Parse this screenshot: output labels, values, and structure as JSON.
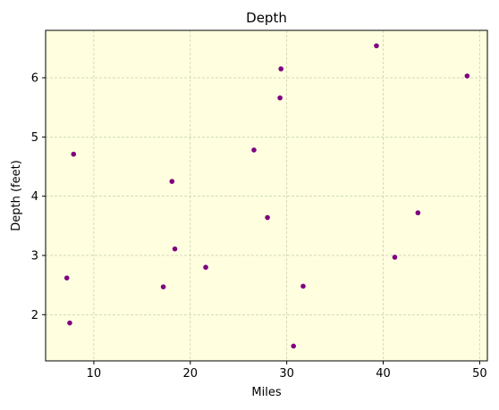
{
  "chart_data": {
    "type": "scatter",
    "title": "Depth",
    "xlabel": "Miles",
    "ylabel": "Depth (feet)",
    "xlim": [
      5.0,
      50.8
    ],
    "ylim": [
      1.22,
      6.8
    ],
    "xticks": [
      10,
      20,
      30,
      40,
      50
    ],
    "yticks": [
      2,
      3,
      4,
      5,
      6
    ],
    "grid": true,
    "colors": {
      "plot_background": "#ffffe0",
      "marker": "#800080",
      "grid": "#b8c4a0"
    },
    "series": [
      {
        "x": [
          7.2,
          7.5,
          7.9,
          17.2,
          18.1,
          18.4,
          21.6,
          26.6,
          28.0,
          29.3,
          29.4,
          30.7,
          31.7,
          39.3,
          41.2,
          43.6,
          48.7
        ],
        "y": [
          2.62,
          1.86,
          4.71,
          2.47,
          4.25,
          3.11,
          2.8,
          4.78,
          3.64,
          5.66,
          6.15,
          1.47,
          2.48,
          6.54,
          2.97,
          3.72,
          6.03
        ]
      }
    ]
  }
}
